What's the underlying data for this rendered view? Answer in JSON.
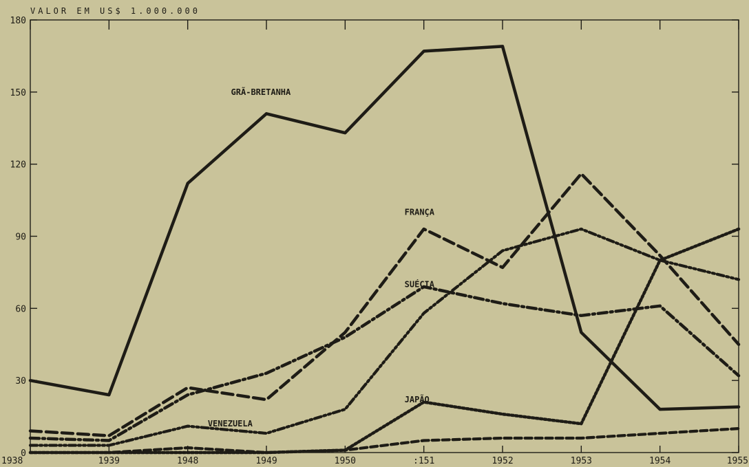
{
  "chart_data": {
    "type": "line",
    "ylabel": "VALOR EM US$ 1.000.000",
    "categories": [
      "1938",
      "1939",
      "1948",
      "1949",
      "1950",
      "1951",
      "1952",
      "1953",
      "1954",
      "1955"
    ],
    "x_tick_labels": [
      "1938",
      "1939",
      "1948",
      "1949",
      "1950",
      ":151",
      "1952",
      "1953",
      "1954",
      "1955"
    ],
    "ylim": [
      0,
      180
    ],
    "y_ticks": [
      "0",
      "30",
      "60",
      "90",
      "120",
      "150",
      "180"
    ],
    "grid": false,
    "series": [
      {
        "name": "GRÃ-BRETANHA",
        "values": [
          30,
          24,
          112,
          141,
          133,
          167,
          169,
          50,
          18,
          19
        ]
      },
      {
        "name": "FRANÇA",
        "values": [
          9,
          7,
          27,
          22,
          50,
          93,
          77,
          116,
          82,
          45
        ]
      },
      {
        "name": "SUÉCIA",
        "values": [
          6,
          5,
          24,
          33,
          48,
          69,
          62,
          57,
          61,
          32
        ]
      },
      {
        "name": "",
        "values": [
          3,
          3,
          11,
          8,
          18,
          58,
          84,
          93,
          80,
          72
        ]
      },
      {
        "name": "VENEZUELA",
        "values": [
          0,
          0,
          2,
          0,
          1,
          5,
          6,
          6,
          8,
          10
        ]
      },
      {
        "name": "JAPÃO",
        "values": [
          0,
          0,
          0,
          0,
          1,
          21,
          16,
          12,
          80,
          93
        ]
      }
    ]
  }
}
